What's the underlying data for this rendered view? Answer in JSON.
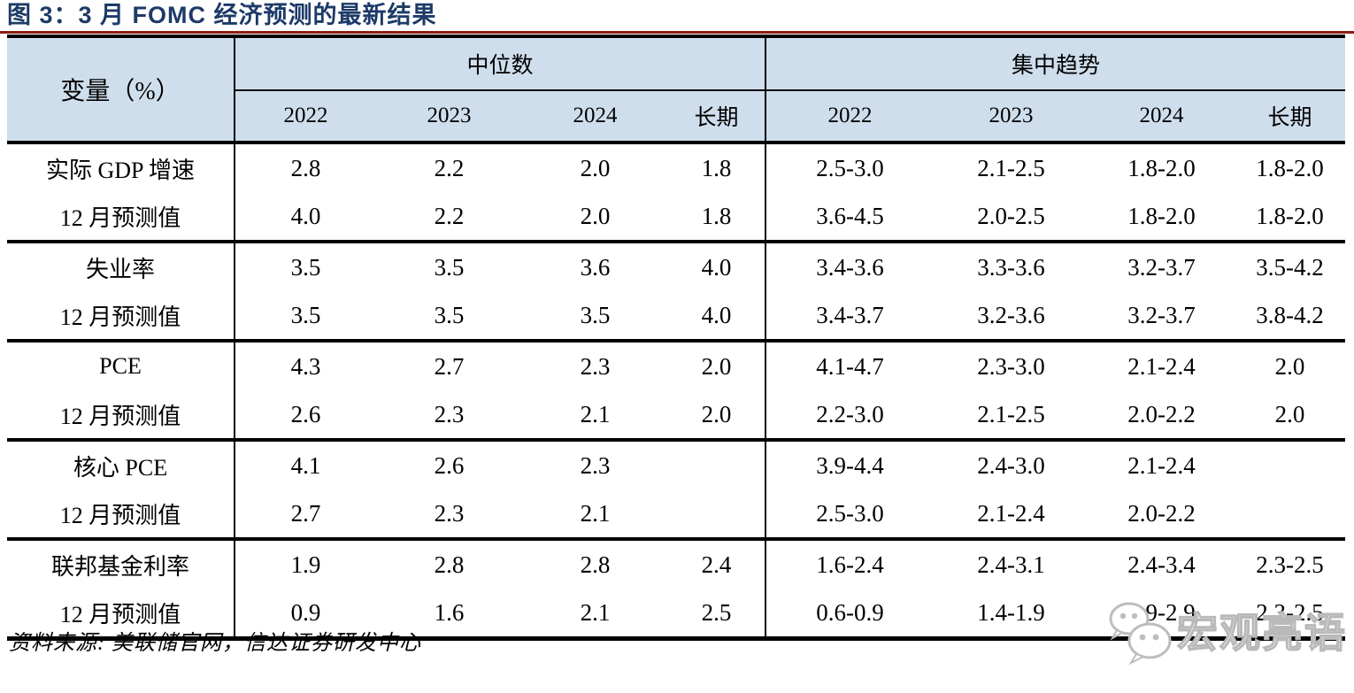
{
  "title": "图 3：3 月 FOMC 经济预测的最新结果",
  "table": {
    "corner_header": "变量（%）",
    "groups": [
      {
        "label": "中位数",
        "columns": [
          "2022",
          "2023",
          "2024",
          "长期"
        ]
      },
      {
        "label": "集中趋势",
        "columns": [
          "2022",
          "2023",
          "2024",
          "长期"
        ]
      }
    ],
    "rows": [
      {
        "label": "实际 GDP 增速",
        "median": [
          "2.8",
          "2.2",
          "2.0",
          "1.8"
        ],
        "central_tendency": [
          "2.5-3.0",
          "2.1-2.5",
          "1.8-2.0",
          "1.8-2.0"
        ]
      },
      {
        "label": "12 月预测值",
        "median": [
          "4.0",
          "2.2",
          "2.0",
          "1.8"
        ],
        "central_tendency": [
          "3.6-4.5",
          "2.0-2.5",
          "1.8-2.0",
          "1.8-2.0"
        ]
      },
      {
        "label": "失业率",
        "median": [
          "3.5",
          "3.5",
          "3.6",
          "4.0"
        ],
        "central_tendency": [
          "3.4-3.6",
          "3.3-3.6",
          "3.2-3.7",
          "3.5-4.2"
        ]
      },
      {
        "label": "12 月预测值",
        "median": [
          "3.5",
          "3.5",
          "3.5",
          "4.0"
        ],
        "central_tendency": [
          "3.4-3.7",
          "3.2-3.6",
          "3.2-3.7",
          "3.8-4.2"
        ]
      },
      {
        "label": "PCE",
        "median": [
          "4.3",
          "2.7",
          "2.3",
          "2.0"
        ],
        "central_tendency": [
          "4.1-4.7",
          "2.3-3.0",
          "2.1-2.4",
          "2.0"
        ]
      },
      {
        "label": "12 月预测值",
        "median": [
          "2.6",
          "2.3",
          "2.1",
          "2.0"
        ],
        "central_tendency": [
          "2.2-3.0",
          "2.1-2.5",
          "2.0-2.2",
          "2.0"
        ]
      },
      {
        "label": "核心 PCE",
        "median": [
          "4.1",
          "2.6",
          "2.3",
          ""
        ],
        "central_tendency": [
          "3.9-4.4",
          "2.4-3.0",
          "2.1-2.4",
          ""
        ]
      },
      {
        "label": "12 月预测值",
        "median": [
          "2.7",
          "2.3",
          "2.1",
          ""
        ],
        "central_tendency": [
          "2.5-3.0",
          "2.1-2.4",
          "2.0-2.2",
          ""
        ]
      },
      {
        "label": "联邦基金利率",
        "median": [
          "1.9",
          "2.8",
          "2.8",
          "2.4"
        ],
        "central_tendency": [
          "1.6-2.4",
          "2.4-3.1",
          "2.4-3.4",
          "2.3-2.5"
        ]
      },
      {
        "label": "12 月预测值",
        "median": [
          "0.9",
          "1.6",
          "2.1",
          "2.5"
        ],
        "central_tendency": [
          "0.6-0.9",
          "1.4-1.9",
          "1.9-2.9",
          "2.3-2.5"
        ]
      }
    ],
    "pair_break_after_rows": [
      1,
      3,
      5,
      7
    ]
  },
  "source_note": "资料来源: 美联储官网，信达证券研发中心",
  "watermark": {
    "icon": "wechat-icon",
    "text": "宏观亮语"
  },
  "colors": {
    "title": "#1d3a68",
    "title_underline": "#8b1d12",
    "header_bg": "#cfdeec",
    "border": "#000000",
    "watermark_gray": "#b9b9b9"
  }
}
